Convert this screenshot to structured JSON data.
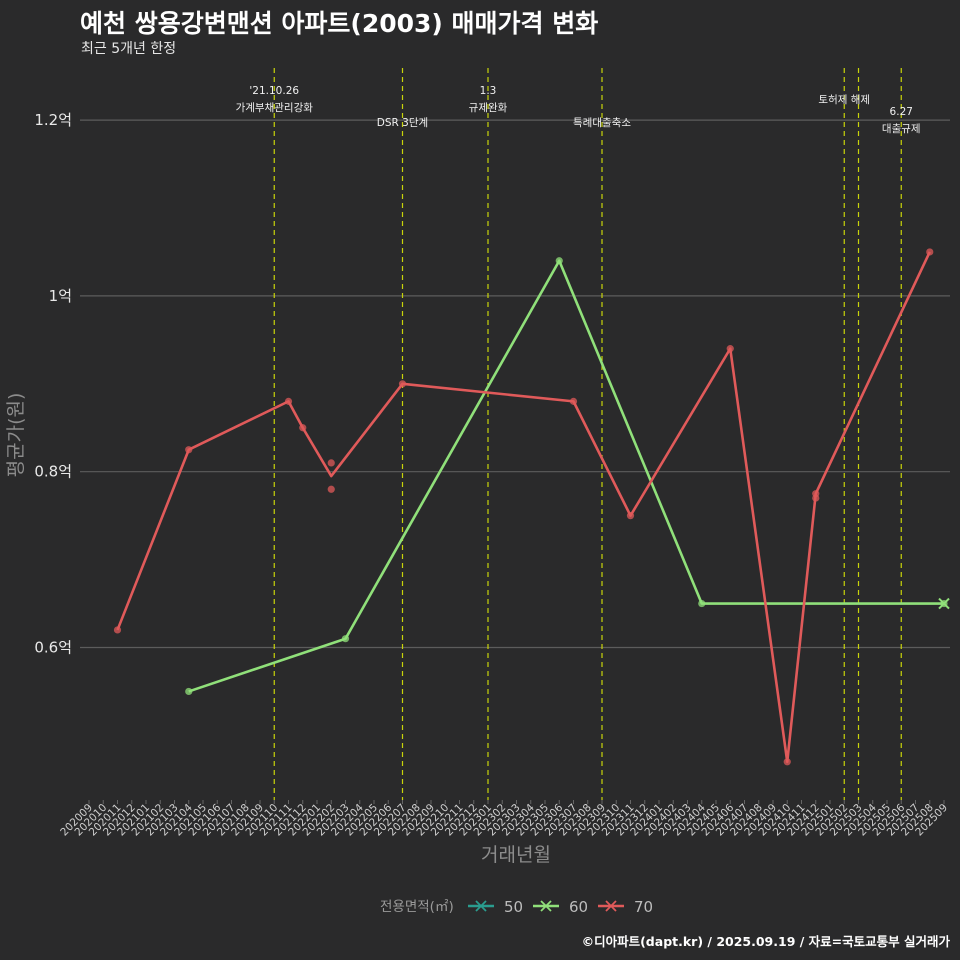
{
  "header": {
    "title": "예천 쌍용강변맨션 아파트(2003) 매매가격 변화",
    "subtitle": "최근 5개년 한정",
    "caption": "©디아파트(dapt.kr) / 2025.09.19 / 자료=국토교통부 실거래가"
  },
  "chart_data": {
    "type": "line",
    "xlabel": "거래년월",
    "ylabel": "평균가(원)",
    "ylim": [
      0.44,
      1.28
    ],
    "yticks": [
      {
        "value": 0.6,
        "label": "0.6억"
      },
      {
        "value": 0.8,
        "label": "0.8억"
      },
      {
        "value": 1.0,
        "label": "1억"
      },
      {
        "value": 1.2,
        "label": "1.2억"
      }
    ],
    "grid": true,
    "categories": [
      "202009",
      "202010",
      "202011",
      "202012",
      "202101",
      "202102",
      "202103",
      "202104",
      "202105",
      "202106",
      "202107",
      "202108",
      "202109",
      "202110",
      "202111",
      "202112",
      "202201",
      "202202",
      "202203",
      "202204",
      "202205",
      "202206",
      "202207",
      "202208",
      "202209",
      "202210",
      "202211",
      "202212",
      "202301",
      "202302",
      "202303",
      "202304",
      "202305",
      "202306",
      "202307",
      "202308",
      "202309",
      "202310",
      "202311",
      "202312",
      "202401",
      "202402",
      "202403",
      "202404",
      "202405",
      "202406",
      "202407",
      "202408",
      "202409",
      "202410",
      "202411",
      "202412",
      "202501",
      "202502",
      "202503",
      "202504",
      "202505",
      "202506",
      "202507",
      "202508",
      "202509"
    ],
    "annotations": [
      {
        "x": "202110",
        "lines": [
          "'21.10.26",
          "가계부채관리강화"
        ],
        "level": "high"
      },
      {
        "x": "202207",
        "lines": [
          "DSR 3단계"
        ],
        "level": "low"
      },
      {
        "x": "202301",
        "lines": [
          "1.3",
          "규제완화"
        ],
        "level": "high"
      },
      {
        "x": "202309",
        "lines": [
          "특례대출축소"
        ],
        "level": "low"
      },
      {
        "x": "202502",
        "lines": [
          "토허제 해제"
        ],
        "level": "mid"
      },
      {
        "x": "202503",
        "lines": [],
        "level": "mid"
      },
      {
        "x": "202506",
        "lines": [
          "6.27",
          "대출규제"
        ],
        "level": "low2"
      }
    ],
    "legend": {
      "title": "전용면적(㎡)",
      "position": "bottom"
    },
    "series": [
      {
        "name": "50",
        "color": "#2a9d8f",
        "line": [],
        "points": []
      },
      {
        "name": "60",
        "color": "#90e07a",
        "line": [
          {
            "x": "202104",
            "y": 0.55
          },
          {
            "x": "202203",
            "y": 0.61
          },
          {
            "x": "202306",
            "y": 1.04
          },
          {
            "x": "202404",
            "y": 0.65
          },
          {
            "x": "202509",
            "y": 0.65
          }
        ],
        "points": [
          {
            "x": "202104",
            "y": 0.55
          },
          {
            "x": "202203",
            "y": 0.61
          },
          {
            "x": "202306",
            "y": 1.04
          },
          {
            "x": "202404",
            "y": 0.65
          },
          {
            "x": "202509",
            "y": 0.65
          }
        ],
        "last_marker": {
          "x": "202509",
          "y": 0.65
        }
      },
      {
        "name": "70",
        "color": "#e05a5a",
        "line": [
          {
            "x": "202011",
            "y": 0.62
          },
          {
            "x": "202104",
            "y": 0.825
          },
          {
            "x": "202111",
            "y": 0.88
          },
          {
            "x": "202112",
            "y": 0.85
          },
          {
            "x": "202202",
            "y": 0.795
          },
          {
            "x": "202207",
            "y": 0.9
          },
          {
            "x": "202307",
            "y": 0.88
          },
          {
            "x": "202311",
            "y": 0.75
          },
          {
            "x": "202406",
            "y": 0.94
          },
          {
            "x": "202410",
            "y": 0.47
          },
          {
            "x": "202412",
            "y": 0.775
          },
          {
            "x": "202508",
            "y": 1.05
          }
        ],
        "points": [
          {
            "x": "202011",
            "y": 0.62
          },
          {
            "x": "202104",
            "y": 0.825
          },
          {
            "x": "202111",
            "y": 0.88
          },
          {
            "x": "202112",
            "y": 0.85
          },
          {
            "x": "202202",
            "y": 0.81
          },
          {
            "x": "202202",
            "y": 0.78
          },
          {
            "x": "202207",
            "y": 0.9
          },
          {
            "x": "202307",
            "y": 0.88
          },
          {
            "x": "202311",
            "y": 0.75
          },
          {
            "x": "202406",
            "y": 0.94
          },
          {
            "x": "202410",
            "y": 0.47
          },
          {
            "x": "202412",
            "y": 0.77
          },
          {
            "x": "202412",
            "y": 0.775
          },
          {
            "x": "202508",
            "y": 1.05
          }
        ]
      }
    ]
  }
}
